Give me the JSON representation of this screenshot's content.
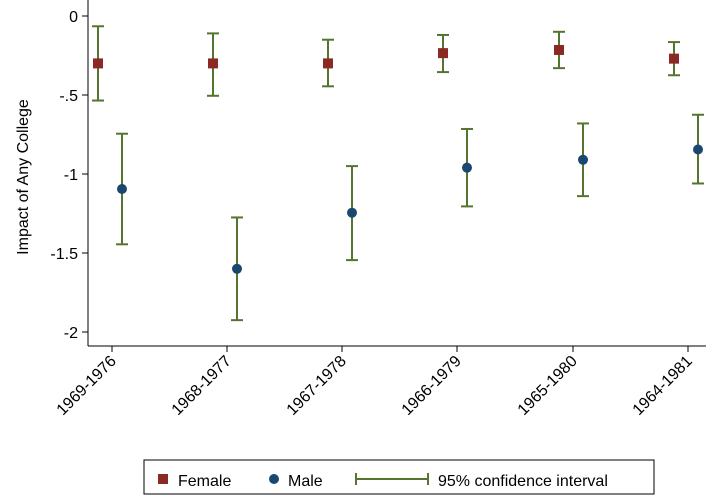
{
  "colors": {
    "female": "#8b2a24",
    "male": "#1a476f",
    "ci": "#55752f",
    "axis": "#000000"
  },
  "chart_data": {
    "type": "scatter",
    "title": "",
    "xlabel": "",
    "ylabel": "Impact of Any College",
    "categories": [
      "1969-1976",
      "1968-1977",
      "1967-1978",
      "1966-1979",
      "1965-1980",
      "1964-1981"
    ],
    "ylim": [
      -2.05,
      0.05
    ],
    "yticks": [
      0,
      -0.5,
      -1,
      -1.5,
      -2
    ],
    "ytick_labels": [
      "0",
      "-.5",
      "-1",
      "-1.5",
      "-2"
    ],
    "grid": false,
    "legend_position": "bottom",
    "legend": [
      "Female",
      "Male",
      "95% confidence interval"
    ],
    "series": [
      {
        "name": "Female",
        "marker": "square",
        "values": [
          -0.3,
          -0.3,
          -0.3,
          -0.235,
          -0.215,
          -0.27
        ],
        "ci_low": [
          -0.535,
          -0.505,
          -0.445,
          -0.355,
          -0.33,
          -0.375
        ],
        "ci_high": [
          -0.065,
          -0.11,
          -0.15,
          -0.12,
          -0.1,
          -0.165
        ]
      },
      {
        "name": "Male",
        "marker": "circle",
        "values": [
          -1.095,
          -1.6,
          -1.245,
          -0.96,
          -0.91,
          -0.845
        ],
        "ci_low": [
          -1.445,
          -1.925,
          -1.545,
          -1.205,
          -1.14,
          -1.06
        ],
        "ci_high": [
          -0.745,
          -1.275,
          -0.95,
          -0.715,
          -0.68,
          -0.625
        ]
      }
    ]
  }
}
